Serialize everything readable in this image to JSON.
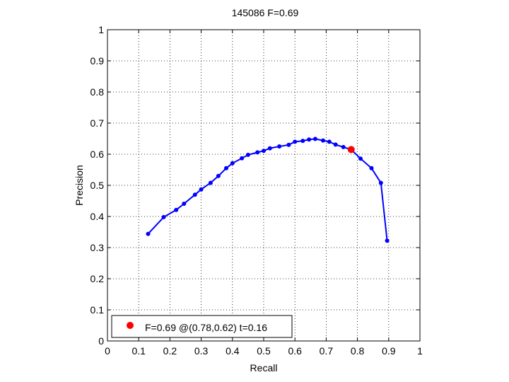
{
  "chart_data": {
    "type": "line",
    "title": "145086 F=0.69",
    "xlabel": "Recall",
    "ylabel": "Precision",
    "xlim": [
      0,
      1
    ],
    "ylim": [
      0,
      1
    ],
    "grid": true,
    "legend_position": "bottom-left",
    "xticks": [
      "0",
      "0.1",
      "0.2",
      "0.3",
      "0.4",
      "0.5",
      "0.6",
      "0.7",
      "0.8",
      "0.9",
      "1"
    ],
    "yticks": [
      "0",
      "0.1",
      "0.2",
      "0.3",
      "0.4",
      "0.5",
      "0.6",
      "0.7",
      "0.8",
      "0.9",
      "1"
    ],
    "series": [
      {
        "color": "#0000ff",
        "x": [
          0.13,
          0.18,
          0.22,
          0.245,
          0.28,
          0.3,
          0.33,
          0.355,
          0.38,
          0.4,
          0.43,
          0.45,
          0.48,
          0.5,
          0.52,
          0.55,
          0.58,
          0.6,
          0.625,
          0.645,
          0.665,
          0.69,
          0.71,
          0.73,
          0.755,
          0.78,
          0.81,
          0.845,
          0.875,
          0.895
        ],
        "y": [
          0.344,
          0.398,
          0.421,
          0.441,
          0.47,
          0.487,
          0.508,
          0.53,
          0.555,
          0.571,
          0.587,
          0.598,
          0.606,
          0.611,
          0.619,
          0.625,
          0.63,
          0.64,
          0.643,
          0.647,
          0.649,
          0.644,
          0.64,
          0.631,
          0.623,
          0.615,
          0.586,
          0.555,
          0.508,
          0.322
        ]
      }
    ],
    "highlight_point": {
      "x": 0.78,
      "y": 0.615,
      "color": "#ff0000",
      "label": "F=0.69 @(0.78,0.62) t=0.16"
    }
  }
}
